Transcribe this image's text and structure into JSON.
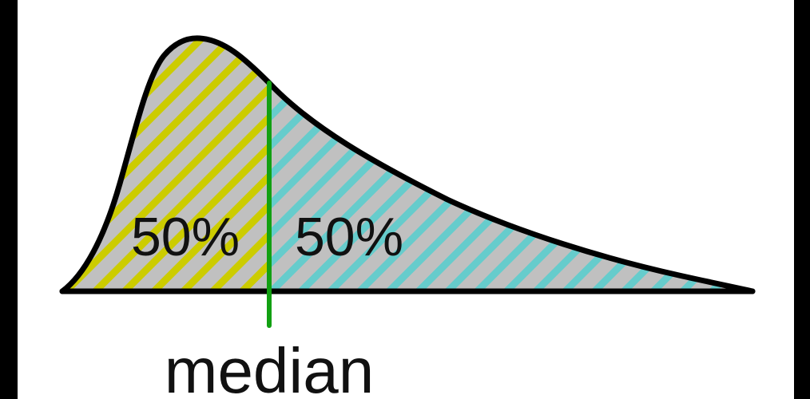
{
  "diagram": {
    "left_label": "50%",
    "right_label": "50%",
    "marker_label": "median",
    "left_share_percent": 50,
    "right_share_percent": 50
  },
  "colors": {
    "background": "#ffffff",
    "frame": "#000000",
    "area_fill": "#c0c0c0",
    "left_hatch": "#cccc00",
    "right_hatch": "#66cccc",
    "outline": "#000000",
    "median_line": "#12a012"
  }
}
